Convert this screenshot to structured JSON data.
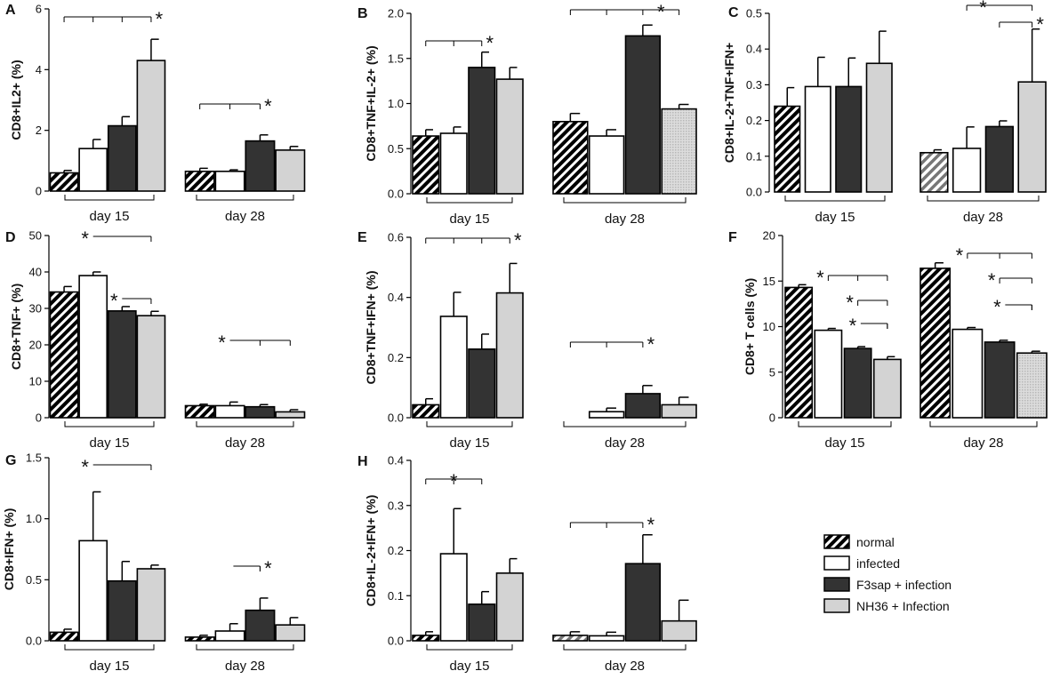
{
  "series": [
    {
      "name": "normal",
      "key": "normal"
    },
    {
      "name": "infected",
      "key": "infected"
    },
    {
      "name": "F3sap + infection",
      "key": "f3sap"
    },
    {
      "name": "NH36 + Infection",
      "key": "nh36"
    }
  ],
  "colors": {
    "white": "#ffffff",
    "dark": "#333333",
    "light": "#d3d3d3",
    "stroke": "#000000"
  },
  "chart_data": [
    {
      "type": "bar",
      "panel": "A",
      "ylabel": "CD8+IL2+ (%)",
      "yticks": [
        "0",
        "2",
        "4",
        "6"
      ],
      "ylim": [
        0,
        6
      ],
      "groups": [
        "day 15",
        "day 28"
      ],
      "values": [
        [
          0.6,
          1.4,
          2.15,
          4.3
        ],
        [
          0.65,
          0.65,
          1.65,
          1.35
        ]
      ],
      "errors": [
        [
          0.08,
          0.3,
          0.3,
          0.7
        ],
        [
          0.1,
          0.05,
          0.2,
          0.12
        ]
      ],
      "stars": [
        "*",
        "*"
      ]
    },
    {
      "type": "bar",
      "panel": "B",
      "ylabel": "CD8+TNF+IL-2+ (%)",
      "yticks": [
        "0.0",
        "0.5",
        "1.0",
        "1.5",
        "2.0"
      ],
      "ylim": [
        0,
        2
      ],
      "groups": [
        "day 15",
        "day 28"
      ],
      "values": [
        [
          0.64,
          0.67,
          1.4,
          1.27
        ],
        [
          0.8,
          0.64,
          1.75,
          0.94
        ]
      ],
      "errors": [
        [
          0.07,
          0.07,
          0.17,
          0.13
        ],
        [
          0.09,
          0.07,
          0.12,
          0.05
        ]
      ],
      "stars": [
        "*",
        "*"
      ]
    },
    {
      "type": "bar",
      "panel": "C",
      "ylabel": "CD8+IL-2+TNF+IFN+",
      "yticks": [
        "0.0",
        "0.1",
        "0.2",
        "0.3",
        "0.4",
        "0.5"
      ],
      "ylim": [
        0,
        0.5
      ],
      "groups": [
        "day 15",
        "day 28"
      ],
      "values": [
        [
          0.24,
          0.295,
          0.295,
          0.36
        ],
        [
          0.11,
          0.122,
          0.183,
          0.308
        ]
      ],
      "errors": [
        [
          0.052,
          0.082,
          0.08,
          0.09
        ],
        [
          0.008,
          0.06,
          0.016,
          0.148
        ]
      ],
      "stars": [
        "*",
        "*"
      ]
    },
    {
      "type": "bar",
      "panel": "D",
      "ylabel": "CD8+TNF+ (%)",
      "yticks": [
        "0",
        "10",
        "20",
        "30",
        "40",
        "50"
      ],
      "ylim": [
        0,
        50
      ],
      "groups": [
        "day 15",
        "day 28"
      ],
      "values": [
        [
          34.5,
          39,
          29.3,
          28
        ],
        [
          3.3,
          3.3,
          3,
          1.6
        ]
      ],
      "errors": [
        [
          1.5,
          1,
          1.2,
          1.2
        ],
        [
          0.4,
          1,
          0.6,
          0.6
        ]
      ],
      "stars": [
        "*",
        "*",
        "*"
      ]
    },
    {
      "type": "bar",
      "panel": "E",
      "ylabel": "CD8+TNF+IFN+ (%)",
      "yticks": [
        "0.0",
        "0.2",
        "0.4",
        "0.6"
      ],
      "ylim": [
        0,
        0.6
      ],
      "groups": [
        "day 15",
        "day 28"
      ],
      "values": [
        [
          0.043,
          0.337,
          0.228,
          0.415
        ],
        [
          0.0,
          0.02,
          0.08,
          0.043
        ]
      ],
      "errors": [
        [
          0.02,
          0.08,
          0.05,
          0.098
        ],
        [
          0,
          0.012,
          0.027,
          0.025
        ]
      ],
      "stars": [
        "*",
        "*"
      ]
    },
    {
      "type": "bar",
      "panel": "F",
      "ylabel": "CD8+ T cells (%)",
      "yticks": [
        "0",
        "5",
        "10",
        "15",
        "20"
      ],
      "ylim": [
        0,
        20
      ],
      "groups": [
        "day 15",
        "day 28"
      ],
      "values": [
        [
          14.3,
          9.6,
          7.6,
          6.4
        ],
        [
          16.4,
          9.7,
          8.3,
          7.1
        ]
      ],
      "errors": [
        [
          0.3,
          0.2,
          0.2,
          0.3
        ],
        [
          0.6,
          0.2,
          0.2,
          0.2
        ]
      ],
      "stars": [
        "*",
        "*",
        "*",
        "*",
        "*",
        "*"
      ]
    },
    {
      "type": "bar",
      "panel": "G",
      "ylabel": "CD8+IFN+ (%)",
      "yticks": [
        "0.0",
        "0.5",
        "1.0",
        "1.5"
      ],
      "ylim": [
        0,
        1.5
      ],
      "groups": [
        "day 15",
        "day 28"
      ],
      "values": [
        [
          0.07,
          0.82,
          0.49,
          0.59
        ],
        [
          0.03,
          0.08,
          0.25,
          0.13
        ]
      ],
      "errors": [
        [
          0.025,
          0.4,
          0.16,
          0.03
        ],
        [
          0.015,
          0.06,
          0.1,
          0.06
        ]
      ],
      "stars": [
        "*",
        "*"
      ]
    },
    {
      "type": "bar",
      "panel": "H",
      "ylabel": "CD8+IL-2+IFN+ (%)",
      "yticks": [
        "0.0",
        "0.1",
        "0.2",
        "0.3",
        "0.4"
      ],
      "ylim": [
        0,
        0.4
      ],
      "groups": [
        "day 15",
        "day 28"
      ],
      "values": [
        [
          0.012,
          0.193,
          0.081,
          0.15
        ],
        [
          0.012,
          0.011,
          0.171,
          0.044
        ]
      ],
      "errors": [
        [
          0.008,
          0.1,
          0.028,
          0.032
        ],
        [
          0.008,
          0.008,
          0.064,
          0.046
        ]
      ],
      "stars": [
        "*",
        "*"
      ]
    }
  ]
}
